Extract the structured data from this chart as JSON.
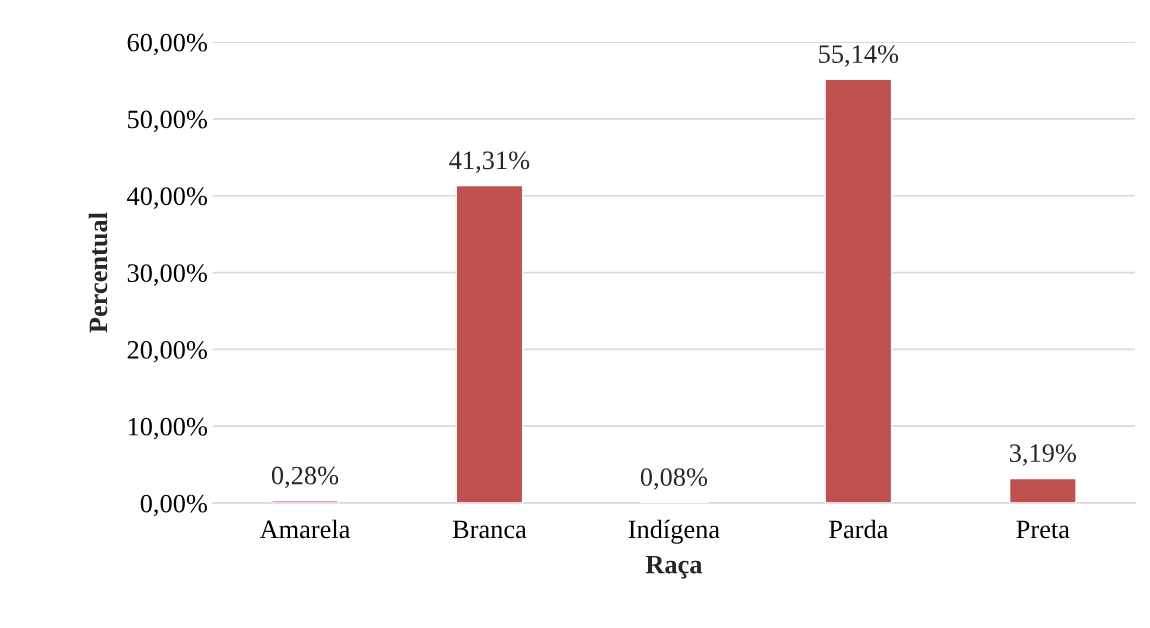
{
  "chart_data": {
    "type": "bar",
    "xlabel": "Raça",
    "ylabel": "Percentual",
    "categories": [
      "Amarela",
      "Branca",
      "Indígena",
      "Parda",
      "Preta"
    ],
    "values": [
      0.28,
      41.31,
      0.08,
      55.14,
      3.19
    ],
    "value_labels": [
      "0,28%",
      "41,31%",
      "0,08%",
      "55,14%",
      "3,19%"
    ],
    "color": "#c0504d",
    "ylim": [
      0,
      60
    ],
    "yticks": [
      {
        "value": 0,
        "label": "0,00%"
      },
      {
        "value": 10,
        "label": "10,00%"
      },
      {
        "value": 20,
        "label": "20,00%"
      },
      {
        "value": 30,
        "label": "30,00%"
      },
      {
        "value": 40,
        "label": "40,00%"
      },
      {
        "value": 50,
        "label": "50,00%"
      },
      {
        "value": 60,
        "label": "60,00%"
      }
    ],
    "grid": "y"
  }
}
